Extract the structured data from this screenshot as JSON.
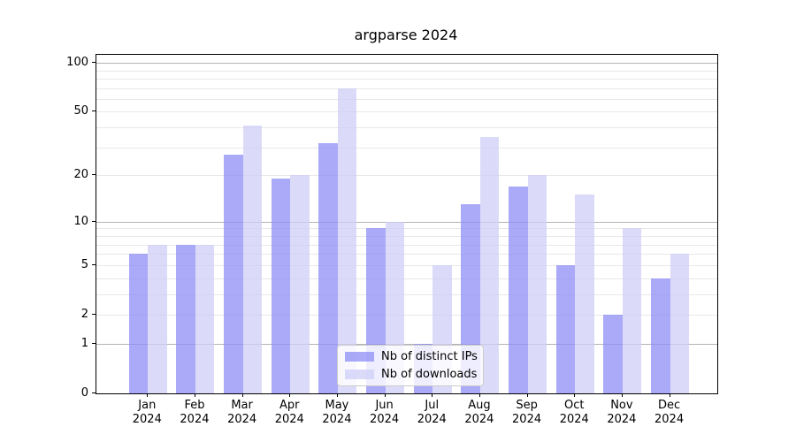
{
  "chart_data": {
    "type": "bar",
    "title": "argparse 2024",
    "xlabel": "",
    "ylabel": "",
    "categories": [
      "Jan 2024",
      "Feb 2024",
      "Mar 2024",
      "Apr 2024",
      "May 2024",
      "Jun 2024",
      "Jul 2024",
      "Aug 2024",
      "Sep 2024",
      "Oct 2024",
      "Nov 2024",
      "Dec 2024"
    ],
    "series": [
      {
        "name": "Nb of distinct IPs",
        "color": "#aaaaf8",
        "fill": "rgba(142,142,246,0.75)",
        "values": [
          6,
          7,
          27,
          19,
          32,
          9,
          1,
          13,
          17,
          5,
          2,
          4
        ]
      },
      {
        "name": "Nb of downloads",
        "color": "#dbdbf9",
        "fill": "rgba(207,207,247,0.75)",
        "values": [
          7,
          7,
          41,
          20,
          70,
          10,
          5,
          35,
          20,
          15,
          9,
          6
        ]
      }
    ],
    "yscale": "log1p",
    "ylim": [
      0,
      112
    ],
    "yticks": [
      100,
      50,
      20,
      10,
      5,
      2,
      1,
      0
    ],
    "minor_gridlines": [
      2,
      3,
      4,
      5,
      6,
      7,
      8,
      9,
      20,
      30,
      40,
      50,
      60,
      70,
      80,
      90
    ],
    "major_gridlines": [
      1,
      10,
      100
    ],
    "grid": true,
    "legend_position": "lower center (inside axes)",
    "colors": {
      "major_grid": "#b3b3b3",
      "minor_grid": "#e8e8e8",
      "spine": "#000000",
      "background": "#ffffff"
    }
  }
}
